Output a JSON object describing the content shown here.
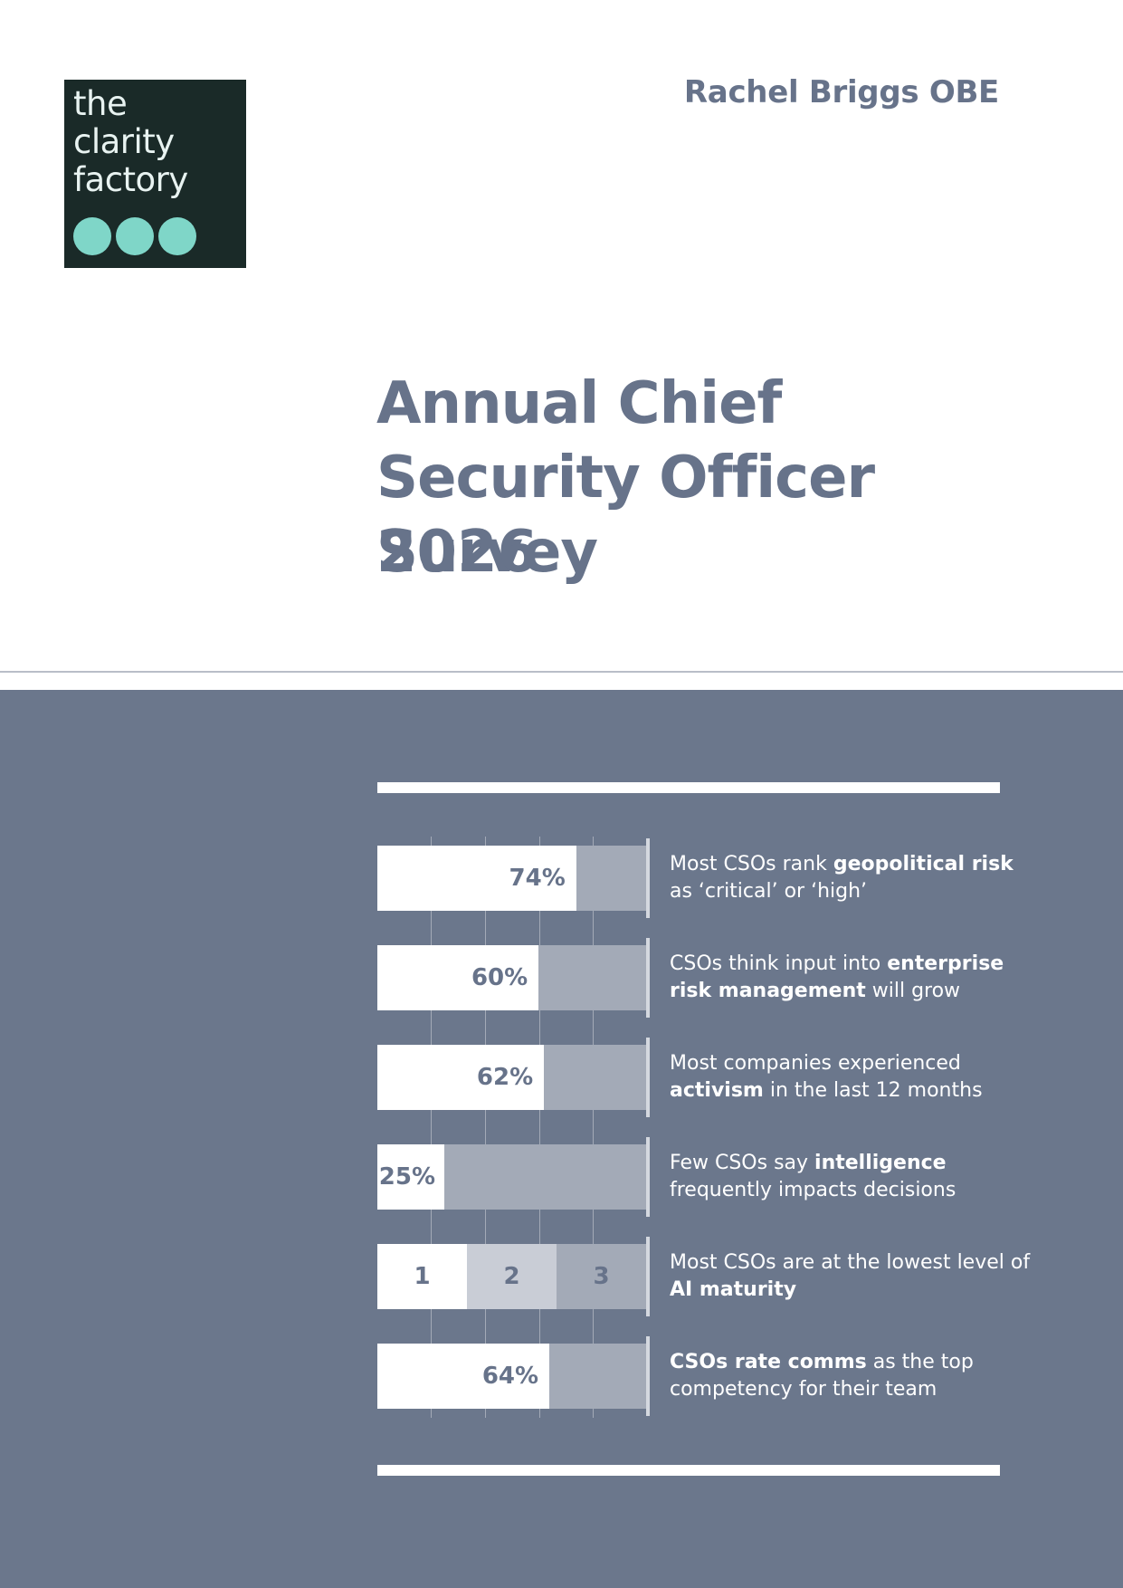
{
  "logo": {
    "lines": [
      "the",
      "clarity",
      "factory"
    ],
    "dot_color": "#7fd6c8",
    "bg_color": "#1a2a28"
  },
  "author": "Rachel Briggs OBE",
  "title": {
    "main": "Annual Chief Security Officer Survey",
    "year": "2026"
  },
  "stats": [
    {
      "value": 74,
      "label": "74%",
      "pre": "Most CSOs rank ",
      "bold": "geopolitical risk",
      "post": " as ‘critical’ or ‘high’"
    },
    {
      "value": 60,
      "label": "60%",
      "pre": "CSOs think input into ",
      "bold": "enterprise risk management",
      "post": " will grow"
    },
    {
      "value": 62,
      "label": "62%",
      "pre": "Most companies experienced ",
      "bold": "activism",
      "post": " in the last 12 months"
    },
    {
      "value": 25,
      "label": "25%",
      "pre": "Few CSOs say ",
      "bold": "intelligence",
      "post": " frequently impacts decisions"
    },
    {
      "segments": [
        "1",
        "2",
        "3"
      ],
      "pre": "Most CSOs are at the lowest level of ",
      "bold": "AI maturity",
      "post": ""
    },
    {
      "value": 64,
      "label": "64%",
      "pre": "",
      "bold": "CSOs rate comms",
      "post": " as the top competency for their team"
    }
  ],
  "colors": {
    "panel": "#6b778c",
    "text_muted": "#67738a",
    "track": "#a3aab7",
    "segment_mid": "#c9cdd6"
  }
}
